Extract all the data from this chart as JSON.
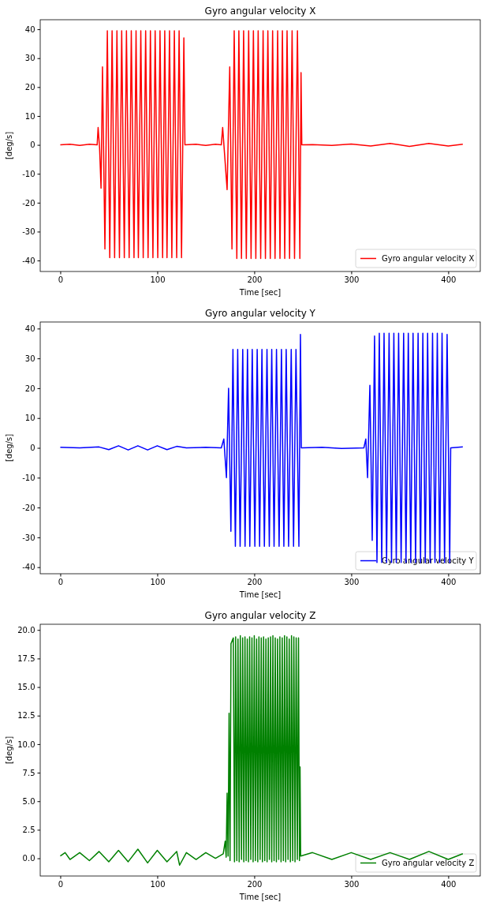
{
  "chart_data": [
    {
      "type": "line",
      "title": "Gyro angular velocity X",
      "xlabel": "Time [sec]",
      "ylabel": "[deg/s]",
      "xlim": [
        -20.7,
        433
      ],
      "xticks": [
        0,
        100,
        200,
        300,
        400
      ],
      "ylim": [
        -43.8,
        43.3
      ],
      "yticks": [
        -40,
        -30,
        -20,
        -10,
        0,
        10,
        20,
        30,
        40
      ],
      "legend": "bottom right",
      "series": [
        {
          "name": "Gyro angular velocity X",
          "color": "#ff0000",
          "x": [
            0,
            10,
            20,
            30,
            38,
            39,
            40.5,
            42,
            43.5,
            46,
            48.5,
            51,
            53.4,
            56,
            58.4,
            61,
            63.3,
            66,
            68.2,
            71,
            73.2,
            76,
            78.1,
            80.5,
            83,
            85.5,
            88,
            90.5,
            92.9,
            95.5,
            97.8,
            100.5,
            102.8,
            105.5,
            107.7,
            110,
            112.6,
            115,
            117.6,
            120,
            122.5,
            125,
            127.4,
            128.5,
            140,
            150,
            160,
            166,
            167.4,
            172,
            174.7,
            177,
            179.3,
            182,
            184.1,
            186.8,
            189,
            191.8,
            194.2,
            196.7,
            199.1,
            201.6,
            204,
            206.6,
            209.1,
            211.5,
            214,
            216.5,
            218.9,
            221.4,
            224.1,
            226.5,
            229,
            231.4,
            233.8,
            236.4,
            239,
            241.5,
            244.5,
            247,
            248.2,
            249,
            260,
            280,
            300,
            320,
            340,
            360,
            380,
            400,
            415
          ],
          "values": [
            0,
            0.2,
            -0.2,
            0.2,
            0,
            6,
            -1,
            -15,
            27,
            -36,
            39.5,
            -39,
            39.5,
            -39,
            39.5,
            -39,
            39.5,
            -39,
            39.5,
            -39,
            39.5,
            -39,
            39.5,
            -39,
            39.5,
            -39,
            39.5,
            -39,
            39.5,
            -39,
            39.5,
            -39,
            39.5,
            -39,
            39.5,
            -39,
            39.5,
            -39,
            39.5,
            -39,
            39.5,
            -39,
            37,
            0,
            0.2,
            -0.2,
            0.2,
            0,
            6,
            -15.5,
            27,
            -36,
            39.5,
            -39.3,
            39.5,
            -39.3,
            39.5,
            -39.3,
            39.5,
            -39.3,
            39.5,
            -39.3,
            39.5,
            -39.3,
            39.5,
            -39.3,
            39.5,
            -39.3,
            39.5,
            -39.3,
            39.5,
            -39.3,
            39.5,
            -39.3,
            39.5,
            -39.3,
            39.5,
            -39.3,
            39.5,
            -39.3,
            25,
            0,
            0.1,
            -0.2,
            0.3,
            -0.4,
            0.5,
            -0.5,
            0.5,
            -0.4,
            0.2
          ]
        }
      ]
    },
    {
      "type": "line",
      "title": "Gyro angular velocity Y",
      "xlabel": "Time [sec]",
      "ylabel": "[deg/s]",
      "xlim": [
        -20.7,
        433
      ],
      "xticks": [
        0,
        100,
        200,
        300,
        400
      ],
      "ylim": [
        -42.2,
        42.2
      ],
      "yticks": [
        -40,
        -30,
        -20,
        -10,
        0,
        10,
        20,
        30,
        40
      ],
      "legend": "bottom right",
      "series": [
        {
          "name": "Gyro angular velocity Y",
          "color": "#0000ff",
          "x": [
            0,
            20,
            40,
            50,
            60,
            70,
            80,
            90,
            100,
            110,
            120,
            130,
            150,
            166,
            168.6,
            171.3,
            173.5,
            175.9,
            178,
            180.5,
            182.9,
            185.4,
            188.1,
            190.5,
            193,
            195.4,
            197.9,
            200.6,
            203,
            205.5,
            207.9,
            210.4,
            213.1,
            215.5,
            218,
            220.4,
            222.9,
            225.6,
            228,
            230.5,
            232.9,
            235.4,
            238.1,
            240.5,
            243,
            246,
            247.6,
            248.5,
            270,
            290,
            313,
            315,
            316.8,
            319.2,
            321.6,
            324,
            326.5,
            328.9,
            331.4,
            333.8,
            336.4,
            339,
            341.5,
            343.9,
            346.4,
            348.8,
            351.4,
            354,
            356.4,
            358.8,
            361.3,
            363.7,
            366.3,
            368.9,
            371.4,
            373.8,
            376.3,
            378.7,
            381.3,
            383.8,
            386.3,
            388.7,
            391.2,
            393.6,
            396.2,
            398.8,
            401.5,
            402.5,
            415
          ],
          "values": [
            0.2,
            0,
            0.3,
            -0.6,
            0.7,
            -0.7,
            0.7,
            -0.7,
            0.7,
            -0.6,
            0.5,
            0,
            0.2,
            0,
            3,
            -10,
            20,
            -28,
            33,
            -33,
            33,
            -33,
            33,
            -33,
            33,
            -33,
            33,
            -33,
            33,
            -33,
            33,
            -33,
            33,
            -33,
            33,
            -33,
            33,
            -33,
            33,
            -33,
            33,
            -33,
            33,
            -33,
            33,
            -33,
            38,
            0,
            0.2,
            -0.2,
            0,
            3,
            -10,
            21,
            -31,
            37.5,
            -38.4,
            38.4,
            -38.4,
            38.4,
            -38.4,
            38.4,
            -38.4,
            38.4,
            -38.4,
            38.4,
            -38.4,
            38.4,
            -38.4,
            38.4,
            -38.4,
            38.4,
            -38.4,
            38.4,
            -38.4,
            38.4,
            -38.4,
            38.4,
            -38.4,
            38.4,
            -38.4,
            38.4,
            -38.4,
            38.4,
            -38.4,
            38,
            -38.4,
            0,
            0.3
          ]
        }
      ]
    },
    {
      "type": "line",
      "title": "Gyro angular velocity Z",
      "xlabel": "Time [sec]",
      "ylabel": "[deg/s]",
      "xlim": [
        -20.7,
        433
      ],
      "xticks": [
        0,
        100,
        200,
        300,
        400
      ],
      "ylim": [
        -1.55,
        20.5
      ],
      "yticks": [
        {
          "value": 0,
          "label": "0.0"
        },
        {
          "value": 2.5,
          "label": "2.5"
        },
        {
          "value": 5,
          "label": "5.0"
        },
        {
          "value": 7.5,
          "label": "7.5"
        },
        {
          "value": 10,
          "label": "10.0"
        },
        {
          "value": 12.5,
          "label": "12.5"
        },
        {
          "value": 15,
          "label": "15.0"
        },
        {
          "value": 17.5,
          "label": "17.5"
        },
        {
          "value": 20,
          "label": "20.0"
        }
      ],
      "legend": "bottom right",
      "series": [
        {
          "name": "Gyro angular velocity Z",
          "color": "#008000",
          "x": [
            0,
            5,
            10,
            20,
            30,
            40,
            50,
            60,
            70,
            80,
            90,
            100,
            110,
            120,
            123,
            130,
            140,
            150,
            160,
            168,
            170,
            171,
            172,
            173,
            174,
            175,
            176,
            178.4,
            179.6,
            180.8,
            182,
            183.2,
            184.4,
            185.6,
            186.8,
            188,
            189.2,
            190.4,
            191.6,
            192.8,
            194,
            195.2,
            196.4,
            197.6,
            198.8,
            200,
            201.2,
            202.4,
            203.6,
            204.8,
            206,
            207.2,
            208.4,
            209.6,
            210.8,
            212,
            213.2,
            214.4,
            215.6,
            216.8,
            218,
            219.2,
            220.4,
            221.6,
            222.8,
            224,
            225.2,
            226.4,
            227.6,
            228.8,
            230,
            231.2,
            232.4,
            233.6,
            234.8,
            236,
            237.2,
            238.4,
            239.6,
            240.8,
            242,
            243.2,
            244.4,
            245.6,
            246.6,
            247.2,
            247.8,
            260,
            280,
            300,
            320,
            340,
            360,
            380,
            400,
            415
          ],
          "values": [
            0.2,
            0.5,
            -0.1,
            0.5,
            -0.2,
            0.6,
            -0.3,
            0.7,
            -0.3,
            0.8,
            -0.4,
            0.7,
            -0.3,
            0.6,
            -0.6,
            0.5,
            -0.1,
            0.5,
            0,
            0.4,
            1.5,
            0.1,
            5.7,
            0.2,
            12.7,
            -0.2,
            18.8,
            19.3,
            -0.3,
            19.4,
            -0.2,
            19.2,
            -0.3,
            19.5,
            -0.1,
            19.3,
            -0.3,
            19.4,
            -0.2,
            19.2,
            -0.3,
            19.4,
            -0.1,
            19.3,
            -0.3,
            19.5,
            -0.2,
            19.2,
            -0.3,
            19.4,
            -0.1,
            19.3,
            -0.3,
            19.4,
            -0.2,
            19.2,
            -0.3,
            19.3,
            -0.1,
            19.4,
            -0.3,
            19.5,
            -0.2,
            19.3,
            -0.3,
            19.2,
            -0.1,
            19.4,
            -0.3,
            19.3,
            -0.2,
            19.5,
            -0.3,
            19.4,
            -0.1,
            19.2,
            -0.3,
            19.5,
            -0.2,
            19.4,
            -0.3,
            19.3,
            -0.1,
            19.3,
            -0.2,
            8,
            0.2,
            0.5,
            -0.1,
            0.5,
            -0.1,
            0.5,
            -0.1,
            0.6,
            -0.1,
            0.4
          ]
        }
      ]
    }
  ]
}
